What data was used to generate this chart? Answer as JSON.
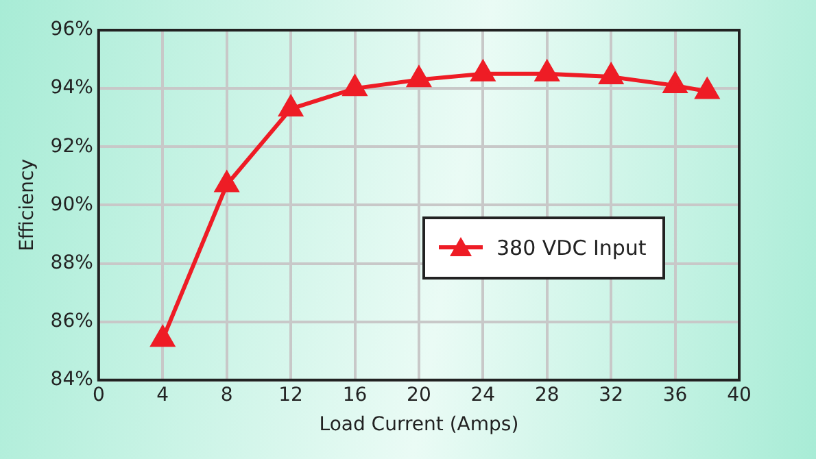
{
  "chart_data": {
    "type": "line",
    "xlabel": "Load Current (Amps)",
    "ylabel": "Efficiency",
    "x": [
      4,
      8,
      12,
      16,
      20,
      24,
      28,
      32,
      36,
      38
    ],
    "series": [
      {
        "name": "380 VDC Input",
        "color": "#ee1c25",
        "values": [
          85.4,
          90.7,
          93.3,
          94.0,
          94.3,
          94.5,
          94.5,
          94.4,
          94.1,
          93.9
        ]
      }
    ],
    "xlim": [
      0,
      40
    ],
    "xticks": [
      0,
      4,
      8,
      12,
      16,
      20,
      24,
      28,
      32,
      36,
      40
    ],
    "ylim": [
      84,
      96
    ],
    "yticks": [
      {
        "value": 84,
        "label": "84%"
      },
      {
        "value": 86,
        "label": "86%"
      },
      {
        "value": 88,
        "label": "88%"
      },
      {
        "value": 90,
        "label": "90%"
      },
      {
        "value": 92,
        "label": "92%"
      },
      {
        "value": 94,
        "label": "94%"
      },
      {
        "value": 96,
        "label": "96%"
      }
    ],
    "grid": true,
    "legend": "right",
    "marker": "triangle",
    "line_style": "solid"
  }
}
